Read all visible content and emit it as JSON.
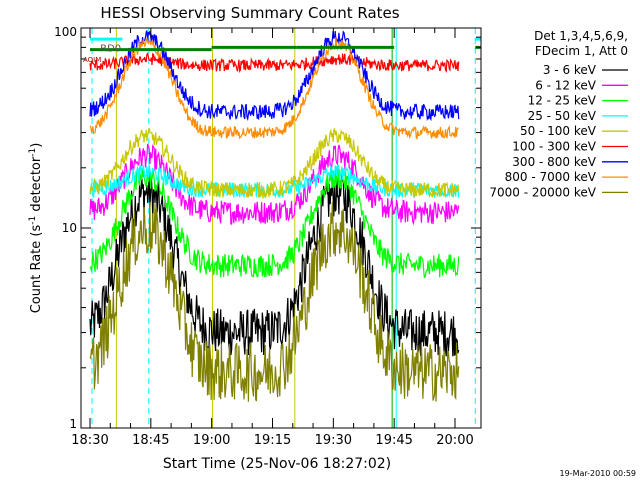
{
  "chart_data": {
    "type": "line",
    "title": "HESSI Observing Summary Count Rates",
    "xlabel": "Start Time (25-Nov-06 18:27:02)",
    "ylabel_main": "Count Rate (s",
    "ylabel_exp1": "-1",
    "ylabel_mid": " detector",
    "ylabel_exp2": "-1",
    "ylabel_end": ")",
    "yscale": "log",
    "ylim": [
      1,
      100
    ],
    "xlim_min": [
      30,
      155
    ],
    "y_ticks": [
      "1",
      "10",
      "100"
    ],
    "x_ticks": [
      {
        "label": "18:30",
        "min": 30
      },
      {
        "label": "18:45",
        "min": 45
      },
      {
        "label": "19:00",
        "min": 60
      },
      {
        "label": "19:15",
        "min": 75
      },
      {
        "label": "19:30",
        "min": 90
      },
      {
        "label": "19:45",
        "min": 105
      },
      {
        "label": "20:00",
        "min": 120
      }
    ],
    "footer_date": "19-Mar-2010 00:59",
    "legend_header": [
      "Det 1,3,4,5,6,9,",
      "FDecim 1, Att 0"
    ],
    "legend_placement": "right",
    "markers": {
      "rd_label": "RD0",
      "left_label": "AOIM"
    },
    "series": [
      {
        "name": "3 - 6 keV",
        "color": "#000000",
        "base": 3.0,
        "peak": 15,
        "noise": 0.12
      },
      {
        "name": "6 - 12 keV",
        "color": "#ff00ff",
        "base": 12,
        "peak": 23,
        "noise": 0.06
      },
      {
        "name": "12 - 25 keV",
        "color": "#00ff00",
        "base": 6.5,
        "peak": 18,
        "noise": 0.06
      },
      {
        "name": "25 - 50 keV",
        "color": "#00ffff",
        "base": 15.5,
        "peak": 19,
        "noise": 0.04
      },
      {
        "name": "50 - 100 keV",
        "color": "#c8c800",
        "base": 15.5,
        "peak": 29,
        "noise": 0.04
      },
      {
        "name": "100 - 300 keV",
        "color": "#ff0000",
        "base": 65,
        "peak": 70,
        "noise": 0.03
      },
      {
        "name": "300 - 800 keV",
        "color": "#0000ff",
        "base": 38,
        "peak": 90,
        "noise": 0.04
      },
      {
        "name": "800 - 7000 keV",
        "color": "#ff8c00",
        "base": 30,
        "peak": 84,
        "noise": 0.03
      },
      {
        "name": "7000 - 20000 keV",
        "color": "#808000",
        "base": 1.9,
        "peak": 10,
        "noise": 0.15
      }
    ],
    "passes": [
      {
        "center": 44,
        "width": 7
      },
      {
        "center": 91,
        "width": 7
      }
    ],
    "flag_bars": [
      {
        "color": "#00ffff",
        "from": 30,
        "to": 38,
        "value": 88
      },
      {
        "color": "#00ffff",
        "from": 125,
        "to": 155,
        "value": 88
      },
      {
        "color": "#008000",
        "from": 30,
        "to": 60,
        "value": 78
      },
      {
        "color": "#008000",
        "from": 60,
        "to": 81,
        "value": 80
      },
      {
        "color": "#008000",
        "from": 81,
        "to": 105,
        "value": 80
      },
      {
        "color": "#008000",
        "from": 125,
        "to": 155,
        "value": 80
      }
    ],
    "vlines": [
      {
        "min": 30.5,
        "color": "#00ffff",
        "style": "dashed"
      },
      {
        "min": 44.5,
        "color": "#00ffff",
        "style": "dashed"
      },
      {
        "min": 36.5,
        "color": "#c8c800",
        "style": "solid"
      },
      {
        "min": 60.2,
        "color": "#c8c800",
        "style": "solid"
      },
      {
        "min": 80.5,
        "color": "#c8c800",
        "style": "solid"
      },
      {
        "min": 104.5,
        "color": "#00aa00",
        "style": "solid"
      },
      {
        "min": 105.5,
        "color": "#00ffff",
        "style": "solid"
      },
      {
        "min": 125,
        "color": "#00ffff",
        "style": "dashed"
      }
    ]
  }
}
